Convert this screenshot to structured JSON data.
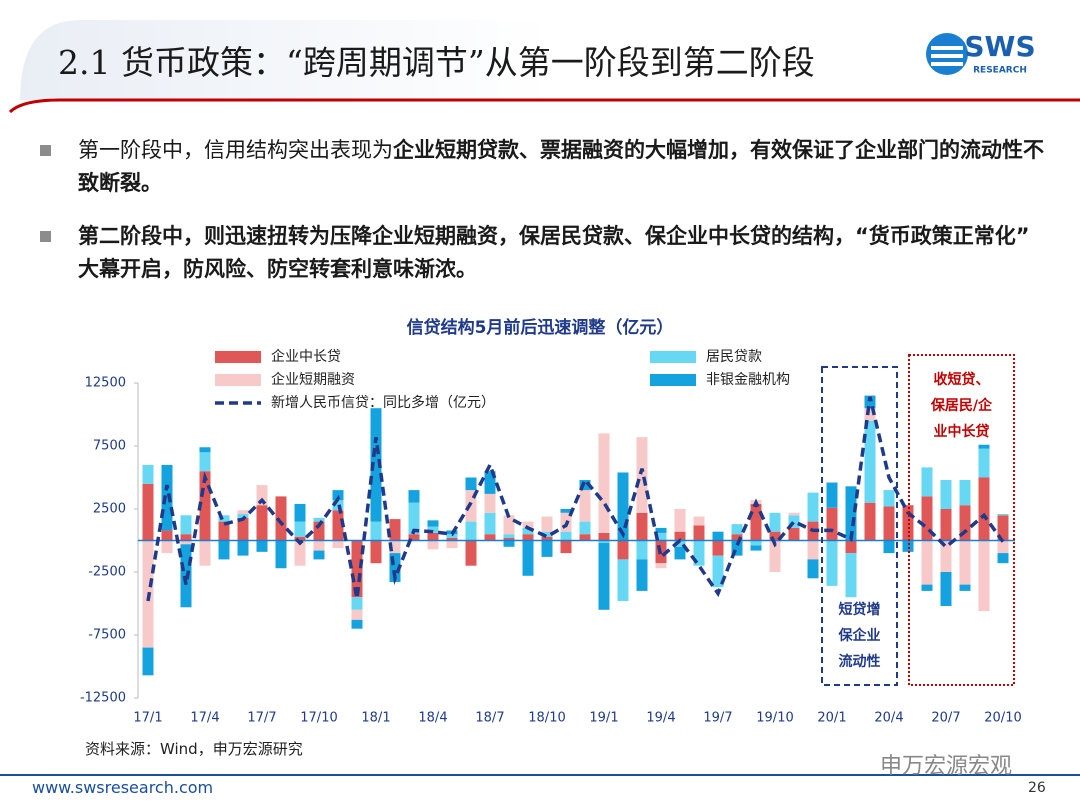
{
  "header": {
    "title": "2.1 货币政策：“跨周期调节”从第一阶段到第二阶段",
    "logo": "SWS",
    "logo_sub": "RESEARCH"
  },
  "bullets": [
    {
      "runs": [
        {
          "text": "第一阶段中，信用结构突出表现为",
          "bold": false
        },
        {
          "text": "企业短期贷款、票据融资的大幅增加，有效保证了企业部门的流动性不致断裂。",
          "bold": true
        }
      ]
    },
    {
      "runs": [
        {
          "text": "第二阶段中，则迅速扭转为压降企业短期融资，保居民贷款、保企业中长贷的结构，“货币政策正常化”大幕开启，防风险、防空转套利意味渐浓。",
          "bold": true
        }
      ]
    }
  ],
  "chart_data": {
    "type": "stacked_bar_line",
    "title": "信贷结构5月前后迅速调整（亿元）",
    "categories": [
      "17/1",
      null,
      null,
      "17/4",
      null,
      null,
      "17/7",
      null,
      null,
      "17/10",
      null,
      null,
      "18/1",
      null,
      null,
      "18/4",
      null,
      null,
      "18/7",
      null,
      null,
      "18/10",
      null,
      null,
      "19/1",
      null,
      null,
      "19/4",
      null,
      null,
      "19/7",
      null,
      null,
      "19/10",
      null,
      null,
      "20/1",
      null,
      null,
      "20/4",
      null,
      null,
      "20/7",
      null,
      null,
      "20/10"
    ],
    "series": [
      {
        "name": "企业中长贷",
        "color": "#e05757",
        "type": "bar",
        "values": [
          4500,
          800,
          500,
          5500,
          1500,
          1800,
          2800,
          3500,
          300,
          1500,
          2400,
          -4500,
          -1800,
          1700,
          500,
          600,
          200,
          -2000,
          500,
          200,
          500,
          300,
          -1000,
          500,
          600,
          -1500,
          2200,
          -1800,
          700,
          1200,
          -1200,
          500,
          2900,
          700,
          1000,
          1500,
          2600,
          -1000,
          3000,
          2700,
          2800,
          3500,
          2500,
          2800,
          5000,
          2000
        ]
      },
      {
        "name": "居民贷款",
        "color": "#66d8f4",
        "type": "bar",
        "values": [
          1500,
          0,
          1500,
          1500,
          500,
          300,
          0,
          0,
          1200,
          300,
          800,
          -1000,
          1500,
          0,
          2500,
          500,
          300,
          1500,
          1700,
          300,
          500,
          400,
          700,
          1000,
          -200,
          -3300,
          -1500,
          600,
          -500,
          -2000,
          -2500,
          800,
          -400,
          1500,
          1000,
          2300,
          -3600,
          -3500,
          6500,
          1300,
          0,
          2300,
          2300,
          2000,
          2300,
          100
        ]
      },
      {
        "name": "企业短期融资",
        "color": "#f7c9c9",
        "type": "bar",
        "values": [
          -8500,
          -1000,
          -300,
          -2000,
          0,
          300,
          1600,
          0,
          -2000,
          -800,
          -600,
          -800,
          0,
          -1000,
          0,
          -700,
          -600,
          2500,
          1500,
          1500,
          500,
          1200,
          1500,
          2500,
          7900,
          0,
          6000,
          -400,
          1800,
          700,
          0,
          0,
          300,
          -2500,
          200,
          -1500,
          0,
          0,
          1000,
          0,
          0,
          -3500,
          -2500,
          -3500,
          -5600,
          -1000
        ]
      },
      {
        "name": "非银金融机构",
        "color": "#14a3de",
        "type": "bar",
        "values": [
          -2200,
          5200,
          -5000,
          400,
          -1500,
          -1200,
          -900,
          -2200,
          1400,
          -700,
          800,
          -700,
          9000,
          -2300,
          1000,
          500,
          300,
          1000,
          1800,
          -500,
          -2800,
          -1300,
          300,
          800,
          -5300,
          5400,
          -2500,
          400,
          -1000,
          0,
          700,
          -1200,
          -400,
          0,
          0,
          -1500,
          2000,
          4300,
          1000,
          -1000,
          -900,
          -500,
          -2700,
          -500,
          300,
          -800
        ]
      },
      {
        "name": "新增人民币信贷：同比多增（亿元）",
        "color": "#1f3a8a",
        "type": "line",
        "values": [
          -4800,
          4400,
          -3500,
          5000,
          1300,
          1700,
          3200,
          1400,
          -200,
          1200,
          3300,
          -4600,
          8200,
          -3000,
          800,
          700,
          500,
          3000,
          6000,
          1800,
          1000,
          300,
          1200,
          4800,
          3000,
          500,
          5700,
          -1300,
          0,
          -2000,
          -4200,
          -400,
          3000,
          -300,
          1500,
          800,
          800,
          100,
          11400,
          5000,
          2200,
          1000,
          -500,
          700,
          2000,
          -100
        ]
      }
    ],
    "ylim": [
      -12500,
      12500
    ],
    "yticks": [
      -12500,
      -7500,
      -2500,
      2500,
      7500,
      12500
    ],
    "annotations": [
      {
        "lines": [
          "短贷增",
          "保企业",
          "流动性"
        ],
        "color": "#1f3a8a"
      },
      {
        "lines": [
          "收短贷、",
          "保居民/企",
          "业中长贷"
        ],
        "color": "#c00000"
      }
    ]
  },
  "source": "资料来源：Wind，申万宏源研究",
  "footer": {
    "url": "www.swsresearch.com",
    "page": "26",
    "watermark": "申万宏源宏观"
  }
}
